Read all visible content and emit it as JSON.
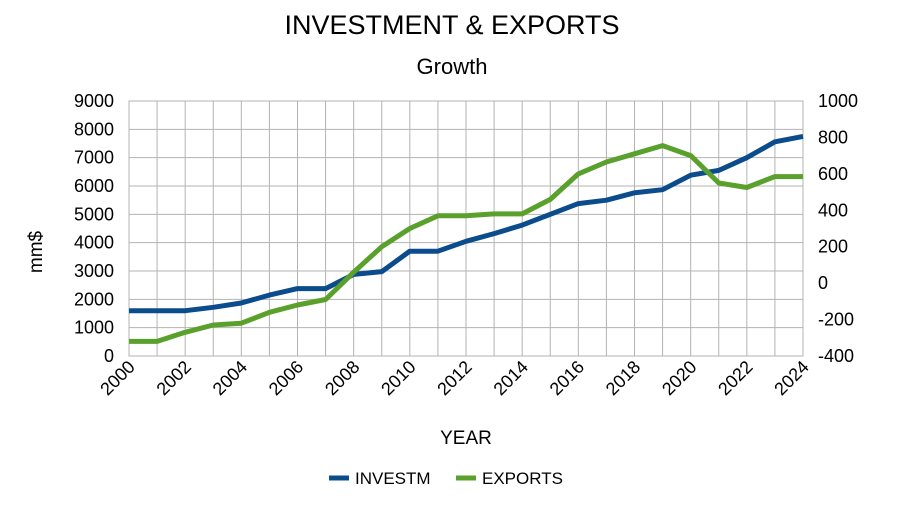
{
  "chart_data": {
    "type": "line",
    "title": "INVESTMENT & EXPORTS",
    "subtitle": "Growth",
    "xlabel": "YEAR",
    "ylabel": "mm$",
    "y2label": "",
    "ylim": [
      0,
      9000
    ],
    "y2lim": [
      -400,
      1000
    ],
    "yticks": [
      0,
      1000,
      2000,
      3000,
      4000,
      5000,
      6000,
      7000,
      8000,
      9000
    ],
    "y2ticks": [
      -400,
      -200,
      0,
      200,
      400,
      600,
      800,
      1000
    ],
    "xticks": [
      2000,
      2002,
      2004,
      2006,
      2008,
      2010,
      2012,
      2014,
      2016,
      2018,
      2020,
      2022,
      2024
    ],
    "grid": true,
    "legend_position": "bottom",
    "x": [
      2000,
      2001,
      2002,
      2003,
      2004,
      2005,
      2006,
      2007,
      2008,
      2009,
      2010,
      2011,
      2012,
      2013,
      2014,
      2015,
      2016,
      2017,
      2018,
      2019,
      2020,
      2021,
      2022,
      2023,
      2024
    ],
    "series": [
      {
        "name": "INVESTM",
        "axis": "left",
        "color": "#0b4c8c",
        "values": [
          1600,
          1600,
          1600,
          1720,
          1870,
          2150,
          2380,
          2380,
          2880,
          2980,
          3700,
          3700,
          4050,
          4320,
          4620,
          5000,
          5380,
          5500,
          5760,
          5870,
          6380,
          6550,
          7000,
          7560,
          7750
        ]
      },
      {
        "name": "EXPORTS",
        "axis": "right",
        "color": "#5aa02c",
        "values": [
          -320,
          -320,
          -270,
          -230,
          -220,
          -160,
          -120,
          -90,
          60,
          200,
          300,
          370,
          370,
          380,
          380,
          460,
          600,
          665,
          710,
          755,
          700,
          550,
          525,
          585,
          585
        ]
      }
    ]
  }
}
